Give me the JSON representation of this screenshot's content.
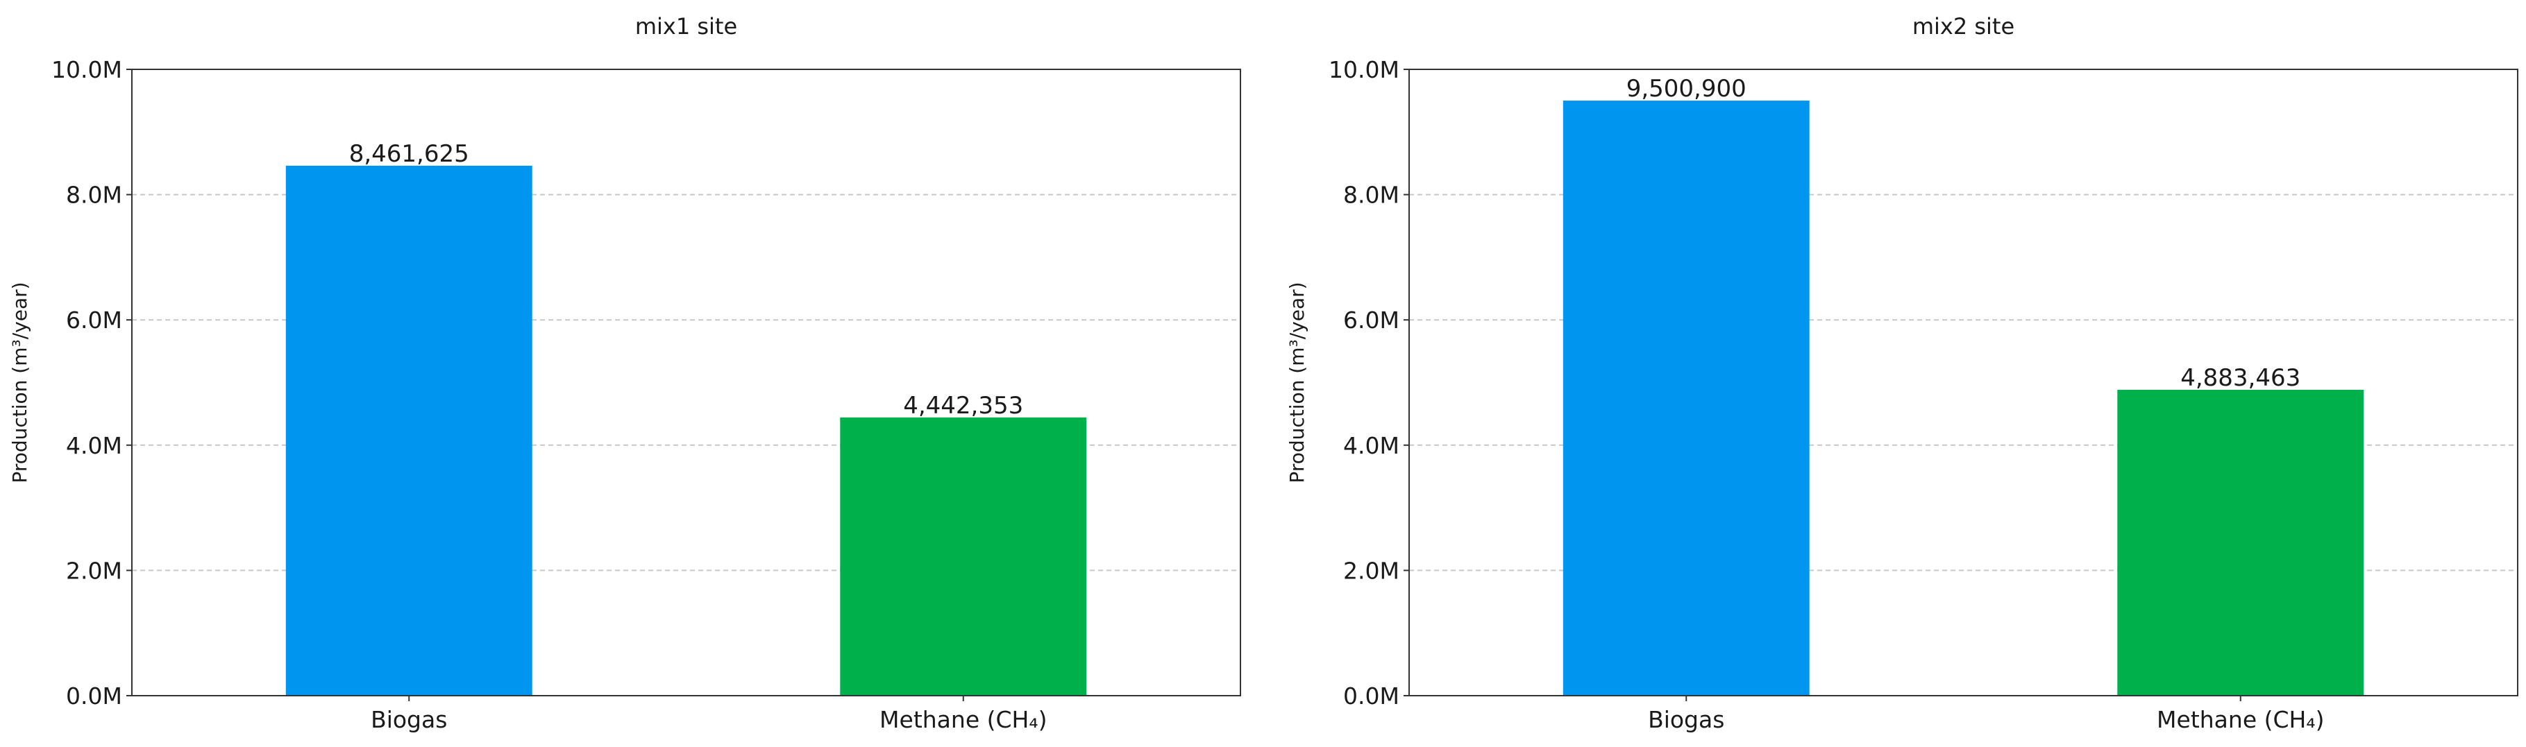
{
  "chart_data": [
    {
      "type": "bar",
      "title": "mix1 site",
      "xlabel": "",
      "ylabel": "Production (m³/year)",
      "ylim": [
        0,
        10000000
      ],
      "yticks": [
        0,
        2000000,
        4000000,
        6000000,
        8000000,
        10000000
      ],
      "ytick_labels": [
        "0.0M",
        "2.0M",
        "4.0M",
        "6.0M",
        "8.0M",
        "10.0M"
      ],
      "grid": "horizontal dashed",
      "categories": [
        "Biogas",
        "Methane (CH₄)"
      ],
      "values": [
        8461625,
        4442353
      ],
      "value_labels": [
        "8,461,625",
        "4,442,353"
      ],
      "colors": [
        "#0096f0",
        "#00b04a"
      ]
    },
    {
      "type": "bar",
      "title": "mix2 site",
      "xlabel": "",
      "ylabel": "Production (m³/year)",
      "ylim": [
        0,
        10000000
      ],
      "yticks": [
        0,
        2000000,
        4000000,
        6000000,
        8000000,
        10000000
      ],
      "ytick_labels": [
        "0.0M",
        "2.0M",
        "4.0M",
        "6.0M",
        "8.0M",
        "10.0M"
      ],
      "grid": "horizontal dashed",
      "categories": [
        "Biogas",
        "Methane (CH₄)"
      ],
      "values": [
        9500900,
        4883463
      ],
      "value_labels": [
        "9,500,900",
        "4,883,463"
      ],
      "colors": [
        "#0096f0",
        "#00b04a"
      ]
    }
  ]
}
